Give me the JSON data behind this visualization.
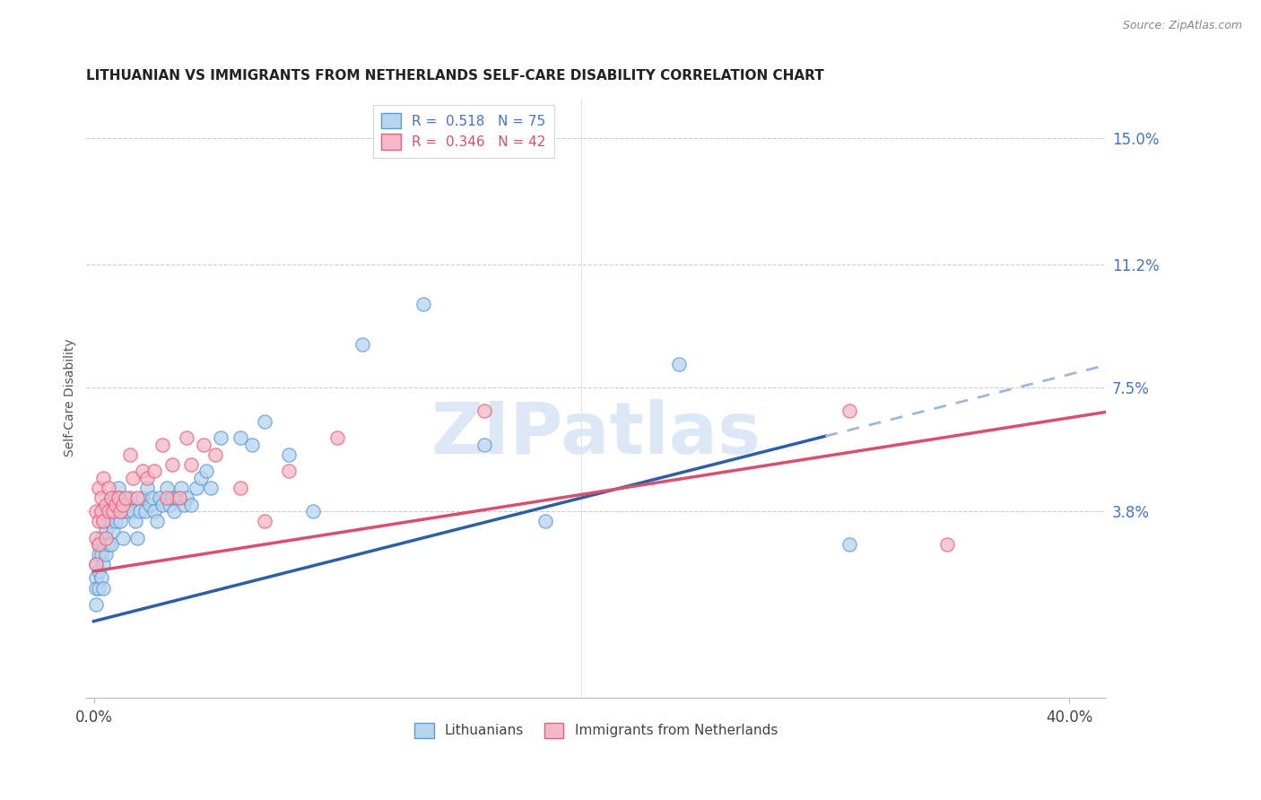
{
  "title": "LITHUANIAN VS IMMIGRANTS FROM NETHERLANDS SELF-CARE DISABILITY CORRELATION CHART",
  "source": "Source: ZipAtlas.com",
  "ylabel": "Self-Care Disability",
  "xlim": [
    -0.003,
    0.415
  ],
  "ylim": [
    -0.018,
    0.162
  ],
  "yticks": [
    0.038,
    0.075,
    0.112,
    0.15
  ],
  "ytick_labels": [
    "3.8%",
    "7.5%",
    "11.2%",
    "15.0%"
  ],
  "series1_color": "#b8d4ee",
  "series1_edge": "#5b9bd5",
  "series2_color": "#f4b8c8",
  "series2_edge": "#e8607a",
  "line1_color": "#2e5fa3",
  "line2_color": "#d94f6e",
  "dashed_color": "#a0b8d8",
  "line1_slope": 0.185,
  "line1_intercept": 0.005,
  "line1_solid_end": 0.3,
  "line1_dash_end": 0.415,
  "line2_slope": 0.115,
  "line2_intercept": 0.02,
  "line2_end": 0.415,
  "watermark_text": "ZIPatlas",
  "legend1_label": "R =  0.518   N = 75",
  "legend2_label": "R =  0.346   N = 42",
  "bottom_label1": "Lithuanians",
  "bottom_label2": "Immigrants from Netherlands",
  "scatter1_x": [
    0.001,
    0.001,
    0.001,
    0.001,
    0.002,
    0.002,
    0.002,
    0.002,
    0.003,
    0.003,
    0.003,
    0.004,
    0.004,
    0.004,
    0.004,
    0.005,
    0.005,
    0.005,
    0.006,
    0.006,
    0.006,
    0.007,
    0.007,
    0.007,
    0.008,
    0.008,
    0.009,
    0.009,
    0.01,
    0.01,
    0.011,
    0.011,
    0.012,
    0.012,
    0.013,
    0.014,
    0.015,
    0.016,
    0.017,
    0.018,
    0.019,
    0.02,
    0.021,
    0.022,
    0.023,
    0.024,
    0.025,
    0.026,
    0.027,
    0.028,
    0.03,
    0.031,
    0.032,
    0.033,
    0.034,
    0.036,
    0.037,
    0.038,
    0.04,
    0.042,
    0.044,
    0.046,
    0.048,
    0.052,
    0.06,
    0.065,
    0.07,
    0.08,
    0.09,
    0.11,
    0.135,
    0.16,
    0.185,
    0.24,
    0.31
  ],
  "scatter1_y": [
    0.022,
    0.018,
    0.015,
    0.01,
    0.028,
    0.025,
    0.02,
    0.015,
    0.03,
    0.025,
    0.018,
    0.035,
    0.028,
    0.022,
    0.015,
    0.038,
    0.032,
    0.025,
    0.04,
    0.035,
    0.028,
    0.042,
    0.035,
    0.028,
    0.04,
    0.032,
    0.042,
    0.035,
    0.045,
    0.038,
    0.042,
    0.035,
    0.038,
    0.03,
    0.04,
    0.038,
    0.042,
    0.038,
    0.035,
    0.03,
    0.038,
    0.042,
    0.038,
    0.045,
    0.04,
    0.042,
    0.038,
    0.035,
    0.042,
    0.04,
    0.045,
    0.04,
    0.042,
    0.038,
    0.042,
    0.045,
    0.04,
    0.042,
    0.04,
    0.045,
    0.048,
    0.05,
    0.045,
    0.06,
    0.06,
    0.058,
    0.065,
    0.055,
    0.038,
    0.088,
    0.1,
    0.058,
    0.035,
    0.082,
    0.028
  ],
  "scatter2_x": [
    0.001,
    0.001,
    0.001,
    0.002,
    0.002,
    0.002,
    0.003,
    0.003,
    0.004,
    0.004,
    0.005,
    0.005,
    0.006,
    0.006,
    0.007,
    0.008,
    0.009,
    0.01,
    0.011,
    0.012,
    0.013,
    0.015,
    0.016,
    0.018,
    0.02,
    0.022,
    0.025,
    0.028,
    0.03,
    0.032,
    0.035,
    0.038,
    0.04,
    0.045,
    0.05,
    0.06,
    0.07,
    0.08,
    0.1,
    0.16,
    0.31,
    0.35
  ],
  "scatter2_y": [
    0.038,
    0.03,
    0.022,
    0.045,
    0.035,
    0.028,
    0.042,
    0.038,
    0.048,
    0.035,
    0.04,
    0.03,
    0.045,
    0.038,
    0.042,
    0.038,
    0.04,
    0.042,
    0.038,
    0.04,
    0.042,
    0.055,
    0.048,
    0.042,
    0.05,
    0.048,
    0.05,
    0.058,
    0.042,
    0.052,
    0.042,
    0.06,
    0.052,
    0.058,
    0.055,
    0.045,
    0.035,
    0.05,
    0.06,
    0.068,
    0.068,
    0.028
  ]
}
